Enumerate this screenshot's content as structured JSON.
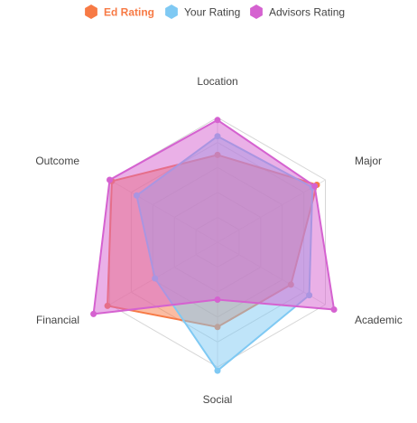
{
  "chart_data": {
    "type": "radar",
    "title": "",
    "axes": [
      "Location",
      "Major",
      "Academic",
      "Social",
      "Financial",
      "Outcome"
    ],
    "range": [
      0,
      10
    ],
    "rings": 5,
    "grid": true,
    "legend_position": "top",
    "series": [
      {
        "name": "Ed Rating",
        "color": "#f77a45",
        "values": [
          7,
          9.2,
          6.8,
          6.8,
          10.2,
          9.8
        ]
      },
      {
        "name": "Your Rating",
        "color": "#7fc9f3",
        "values": [
          8.5,
          8.8,
          8.5,
          10.3,
          5.8,
          7.5
        ]
      },
      {
        "name": "Advisors Rating",
        "color": "#d562d0",
        "values": [
          9.8,
          9.0,
          10.8,
          4.6,
          11.5,
          10.0
        ]
      }
    ]
  }
}
